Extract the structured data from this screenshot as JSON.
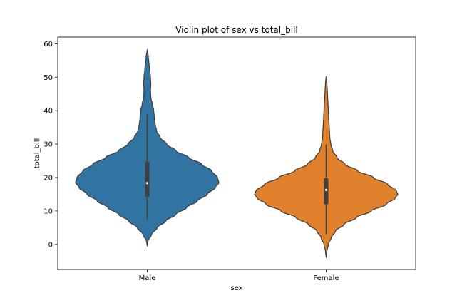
{
  "chart_data": {
    "type": "violin",
    "title": "Violin plot of sex vs total_bill",
    "xlabel": "sex",
    "ylabel": "total_bill",
    "ylim": [
      -7.5,
      62
    ],
    "yticks": [
      0,
      10,
      20,
      30,
      40,
      50,
      60
    ],
    "grid": false,
    "categories": [
      "Male",
      "Female"
    ],
    "colors": {
      "Male": "#3274a1",
      "Female": "#e1812c"
    },
    "violins": [
      {
        "category": "Male",
        "kde_min": -0.5,
        "kde_max": 58.3,
        "whisker_low": 7.25,
        "q1": 14.3,
        "median": 18.35,
        "q3": 24.7,
        "whisker_high": 38.9,
        "density_profile": [
          [
            -0.5,
            0.0
          ],
          [
            1,
            0.01
          ],
          [
            3,
            0.06
          ],
          [
            5,
            0.14
          ],
          [
            7,
            0.26
          ],
          [
            9,
            0.4
          ],
          [
            11,
            0.55
          ],
          [
            13,
            0.7
          ],
          [
            15,
            0.84
          ],
          [
            17,
            0.95
          ],
          [
            18.5,
            1.0
          ],
          [
            20,
            0.98
          ],
          [
            22,
            0.9
          ],
          [
            24,
            0.76
          ],
          [
            26,
            0.58
          ],
          [
            28,
            0.4
          ],
          [
            30,
            0.27
          ],
          [
            32,
            0.18
          ],
          [
            34,
            0.13
          ],
          [
            36,
            0.11
          ],
          [
            38,
            0.1
          ],
          [
            40,
            0.09
          ],
          [
            42,
            0.07
          ],
          [
            44,
            0.05
          ],
          [
            46,
            0.045
          ],
          [
            48,
            0.05
          ],
          [
            50,
            0.045
          ],
          [
            52,
            0.035
          ],
          [
            54,
            0.025
          ],
          [
            56,
            0.015
          ],
          [
            58.3,
            0.0
          ]
        ]
      },
      {
        "category": "Female",
        "kde_min": -4.0,
        "kde_max": 50.3,
        "whisker_low": 3.07,
        "q1": 12.0,
        "median": 16.3,
        "q3": 19.8,
        "whisker_high": 29.9,
        "density_profile": [
          [
            -4.0,
            0.0
          ],
          [
            -2,
            0.01
          ],
          [
            0,
            0.03
          ],
          [
            2,
            0.07
          ],
          [
            4,
            0.13
          ],
          [
            6,
            0.25
          ],
          [
            8,
            0.42
          ],
          [
            10,
            0.63
          ],
          [
            12,
            0.84
          ],
          [
            14,
            0.97
          ],
          [
            15,
            1.0
          ],
          [
            16,
            0.98
          ],
          [
            18,
            0.86
          ],
          [
            20,
            0.66
          ],
          [
            22,
            0.44
          ],
          [
            24,
            0.26
          ],
          [
            26,
            0.15
          ],
          [
            28,
            0.09
          ],
          [
            30,
            0.065
          ],
          [
            32,
            0.05
          ],
          [
            34,
            0.045
          ],
          [
            36,
            0.04
          ],
          [
            38,
            0.035
          ],
          [
            40,
            0.03
          ],
          [
            42,
            0.025
          ],
          [
            44,
            0.02
          ],
          [
            46,
            0.015
          ],
          [
            48,
            0.01
          ],
          [
            50.3,
            0.0
          ]
        ]
      }
    ]
  }
}
